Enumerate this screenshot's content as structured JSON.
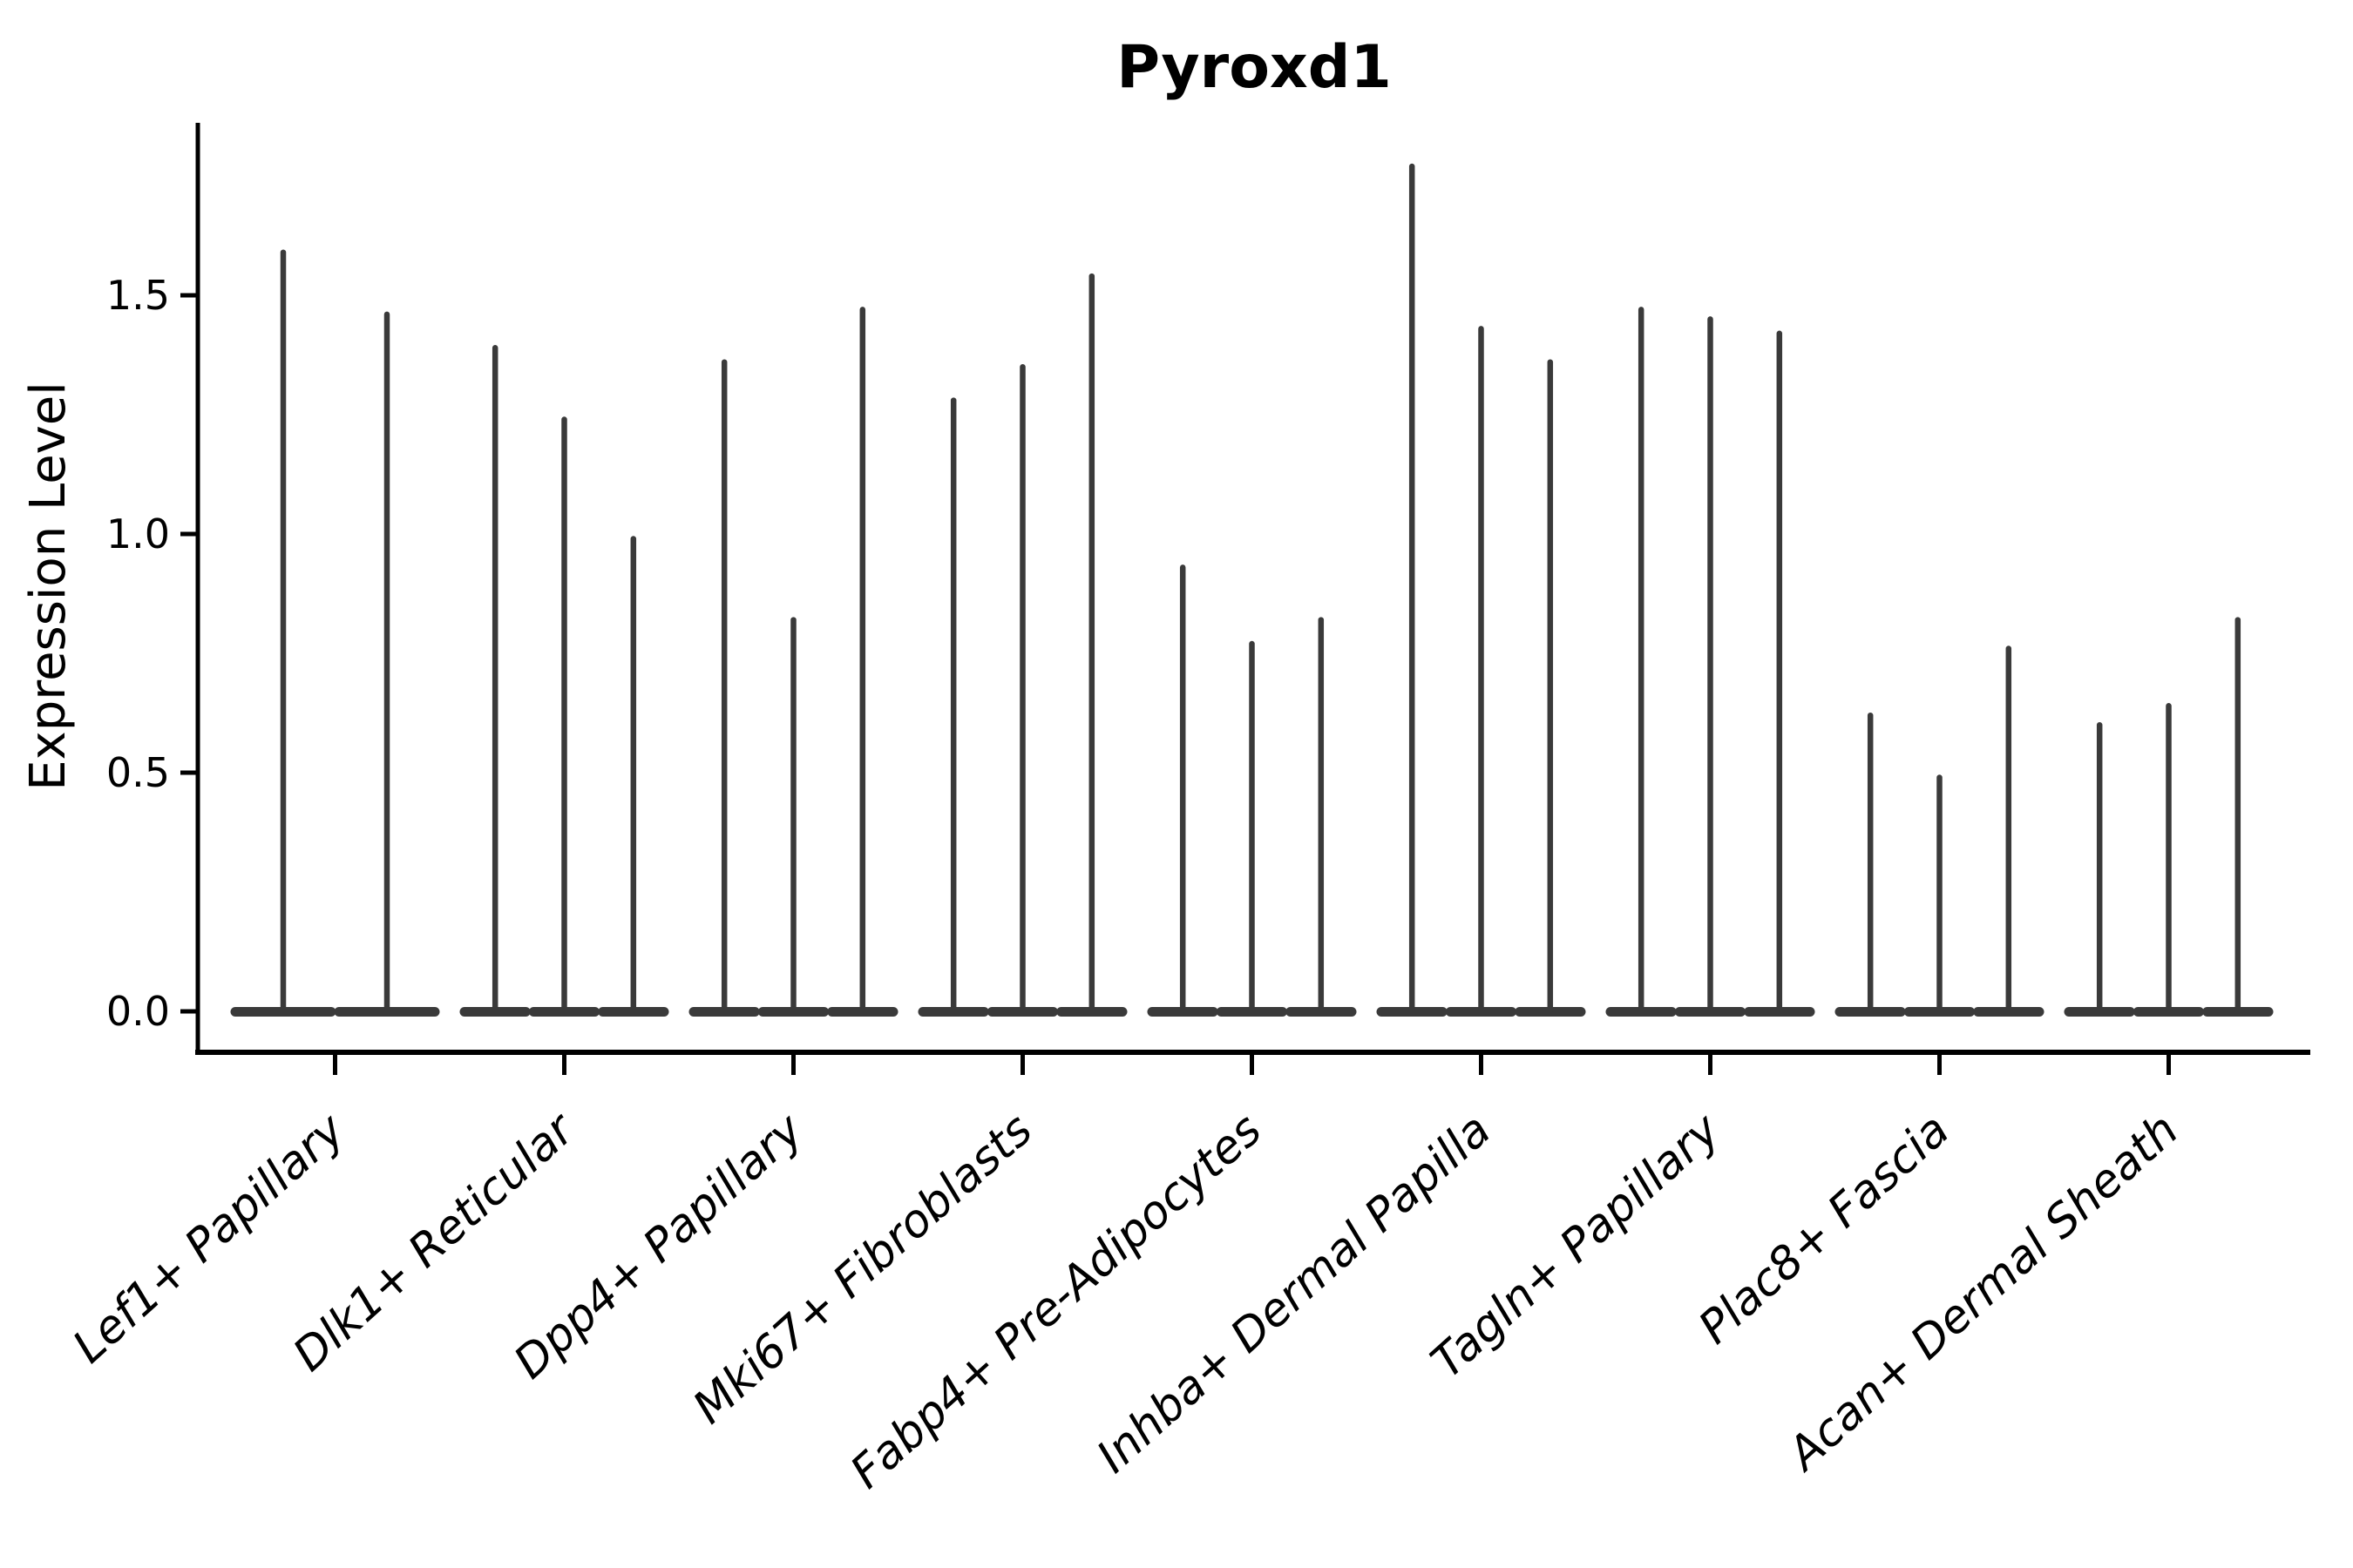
{
  "chart_data": {
    "type": "violin",
    "title": "Pyroxd1",
    "ylabel": "Expression Level",
    "xlabel": "",
    "legend_position": "none",
    "grid": false,
    "background_color": "#ffffff",
    "violin_color": "#3a3a3a",
    "spine_color": "#000000",
    "violin_shape": "needle-with-flat-base-at-zero",
    "ylim": [
      -0.08,
      1.86
    ],
    "yticks": [
      {
        "value": 0.0,
        "label": "0.0"
      },
      {
        "value": 0.5,
        "label": "0.5"
      },
      {
        "value": 1.0,
        "label": "1.0"
      },
      {
        "value": 1.5,
        "label": "1.5"
      }
    ],
    "categories": [
      "Lef1+ Papillary",
      "Dlk1+ Reticular",
      "Dpp4+ Papillary",
      "Mki67+ Fibroblasts",
      "Fabp4+ Pre-Adipocytes",
      "Inhba+ Dermal Papilla",
      "Tagln+ Papillary",
      "Plac8+ Fascia",
      "Acan+ Dermal Sheath"
    ],
    "groups": [
      {
        "label": "Lef1+ Papillary",
        "violin_maxima": [
          1.59,
          1.46
        ]
      },
      {
        "label": "Dlk1+ Reticular",
        "violin_maxima": [
          1.39,
          1.24,
          0.99
        ]
      },
      {
        "label": "Dpp4+ Papillary",
        "violin_maxima": [
          1.36,
          0.82,
          1.47
        ]
      },
      {
        "label": "Mki67+ Fibroblasts",
        "violin_maxima": [
          1.28,
          1.35,
          1.54
        ]
      },
      {
        "label": "Fabp4+ Pre-Adipocytes",
        "violin_maxima": [
          0.93,
          0.77,
          0.82
        ]
      },
      {
        "label": "Inhba+ Dermal Papilla",
        "violin_maxima": [
          1.77,
          1.43,
          1.36
        ]
      },
      {
        "label": "Tagln+ Papillary",
        "violin_maxima": [
          1.47,
          1.45,
          1.42
        ]
      },
      {
        "label": "Plac8+ Fascia",
        "violin_maxima": [
          0.62,
          0.49,
          0.76
        ]
      },
      {
        "label": "Acan+ Dermal Sheath",
        "violin_maxima": [
          0.6,
          0.64,
          0.82
        ]
      }
    ],
    "distribution_note": "expression mass concentrated at 0 (wide flat base); thin tail up to each maximum"
  }
}
